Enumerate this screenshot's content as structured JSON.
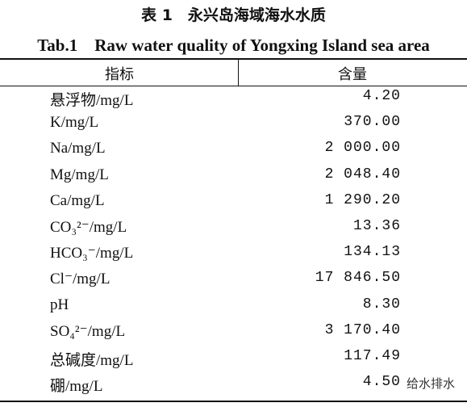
{
  "header": {
    "title_cn": "表 1　永兴岛海域海水水质",
    "title_en": "Tab.1　Raw water quality of Yongxing Island sea area"
  },
  "table": {
    "columns": [
      "指标",
      "含量"
    ],
    "rows": [
      [
        "悬浮物/mg/L",
        "4.20"
      ],
      [
        "K/mg/L",
        "370.00"
      ],
      [
        "Na/mg/L",
        "2 000.00"
      ],
      [
        "Mg/mg/L",
        "2 048.40"
      ],
      [
        "Ca/mg/L",
        "1 290.20"
      ],
      [
        "CO₃²⁻/mg/L",
        "13.36"
      ],
      [
        "HCO₃⁻/mg/L",
        "134.13"
      ],
      [
        "Cl⁻/mg/L",
        "17 846.50"
      ],
      [
        "pH",
        "8.30"
      ],
      [
        "SO₄²⁻/mg/L",
        "3 170.40"
      ],
      [
        "总碱度/mg/L",
        "117.49"
      ],
      [
        "硼/mg/L",
        "4.50"
      ]
    ]
  },
  "watermark": "给水排水"
}
